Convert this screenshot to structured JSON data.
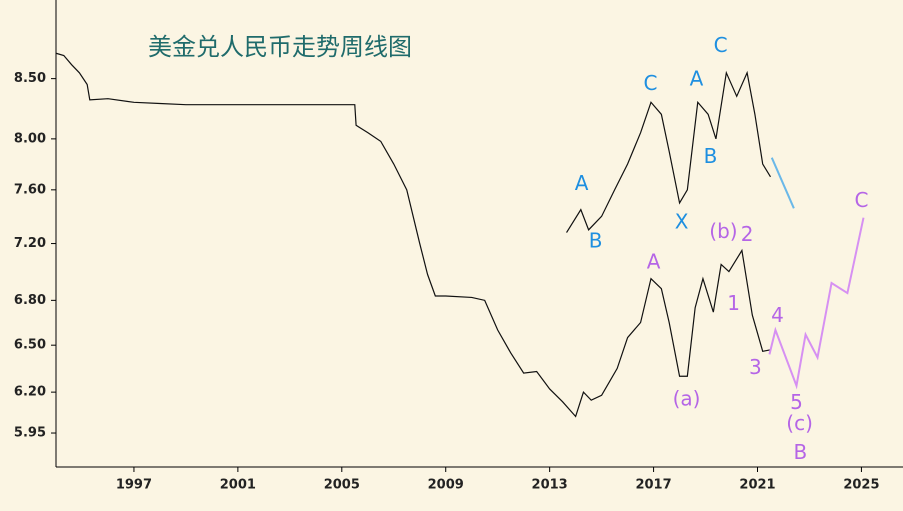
{
  "chart_data": {
    "type": "line",
    "title": "美金兑人民币走势周线图",
    "log_y": true,
    "xlim": [
      1994,
      2026.6
    ],
    "ylim": [
      5.75,
      9.2
    ],
    "xticks": [
      1997,
      2001,
      2005,
      2009,
      2013,
      2017,
      2021,
      2025
    ],
    "yticks": [
      {
        "value": 8.5,
        "label": "8.50"
      },
      {
        "value": 8.0,
        "label": "8.00"
      },
      {
        "value": 7.6,
        "label": "7.60"
      },
      {
        "value": 7.2,
        "label": "7.20"
      },
      {
        "value": 6.8,
        "label": "6.80"
      },
      {
        "value": 6.5,
        "label": "6.50"
      },
      {
        "value": 6.2,
        "label": "6.20"
      },
      {
        "value": 5.95,
        "label": "5.95"
      }
    ],
    "series": [
      {
        "color": "#111111",
        "x": [
          1994.0,
          1994.3,
          1994.6,
          1994.9,
          1995.2,
          1995.3,
          1996,
          1997,
          1998,
          1999,
          2000,
          2001,
          2002,
          2003,
          2004,
          2005.5,
          2005.55,
          2006,
          2006.5,
          2007,
          2007.5,
          2008,
          2008.3,
          2008.6,
          2009,
          2010,
          2010.5,
          2011,
          2011.5,
          2012,
          2012.5,
          2013,
          2013.5,
          2014,
          2014.3,
          2014.6,
          2015,
          2015.6,
          2016,
          2016.5,
          2016.9,
          2017.3,
          2017.6,
          2018.0,
          2018.3,
          2018.6,
          2018.9,
          2019.3,
          2019.6,
          2019.9,
          2020.4,
          2020.8,
          2021.2,
          2021.5
        ],
        "values": [
          8.72,
          8.7,
          8.62,
          8.55,
          8.45,
          8.32,
          8.33,
          8.3,
          8.29,
          8.28,
          8.28,
          8.28,
          8.28,
          8.28,
          8.28,
          8.28,
          8.11,
          8.05,
          7.98,
          7.8,
          7.6,
          7.2,
          6.98,
          6.83,
          6.83,
          6.82,
          6.8,
          6.6,
          6.45,
          6.32,
          6.33,
          6.22,
          6.14,
          6.05,
          6.2,
          6.15,
          6.18,
          6.35,
          6.55,
          6.65,
          6.95,
          6.88,
          6.65,
          6.3,
          6.3,
          6.75,
          6.95,
          6.72,
          7.05,
          7.0,
          7.15,
          6.7,
          6.46,
          6.47
        ]
      },
      {
        "color": "#111111",
        "x": [
          2013.65,
          2014.2,
          2014.5,
          2015,
          2015.5,
          2016,
          2016.5,
          2016.9,
          2017.3,
          2017.6,
          2018.0,
          2018.3,
          2018.7,
          2019.1,
          2019.4,
          2019.8,
          2020.2,
          2020.6,
          2020.9,
          2021.2,
          2021.5
        ],
        "values": [
          7.28,
          7.45,
          7.3,
          7.4,
          7.6,
          7.8,
          8.05,
          8.3,
          8.2,
          7.9,
          7.5,
          7.6,
          8.3,
          8.2,
          8.0,
          8.55,
          8.35,
          8.55,
          8.2,
          7.8,
          7.7
        ]
      },
      {
        "color": "#6ab8e8",
        "x": [
          2021.55,
          2022.4
        ],
        "values": [
          7.85,
          7.46
        ]
      },
      {
        "color": "#d690f2",
        "x": [
          2021.46,
          2021.69,
          2022.5,
          2022.85,
          2023.31,
          2023.85,
          2024.46,
          2025.08
        ],
        "values": [
          6.44,
          6.6,
          6.24,
          6.57,
          6.42,
          6.92,
          6.85,
          7.39
        ]
      }
    ],
    "annotations": [
      {
        "text": "A",
        "x": 2014.23,
        "y": 7.64,
        "color": "#1e8fe0"
      },
      {
        "text": "B",
        "x": 2014.77,
        "y": 7.21,
        "color": "#1e8fe0"
      },
      {
        "text": "C",
        "x": 2016.88,
        "y": 8.45,
        "color": "#1e8fe0"
      },
      {
        "text": "X",
        "x": 2018.08,
        "y": 7.35,
        "color": "#1e8fe0"
      },
      {
        "text": "A",
        "x": 2018.65,
        "y": 8.49,
        "color": "#1e8fe0"
      },
      {
        "text": "B",
        "x": 2019.19,
        "y": 7.85,
        "color": "#1e8fe0"
      },
      {
        "text": "C",
        "x": 2019.58,
        "y": 8.78,
        "color": "#1e8fe0"
      },
      {
        "text": "A",
        "x": 2017.0,
        "y": 7.06,
        "color": "#b565e6"
      },
      {
        "text": "(a)",
        "x": 2018.27,
        "y": 6.15,
        "color": "#b565e6"
      },
      {
        "text": "(b)",
        "x": 2019.69,
        "y": 7.28,
        "color": "#b565e6"
      },
      {
        "text": "2",
        "x": 2020.6,
        "y": 7.26,
        "color": "#b565e6"
      },
      {
        "text": "1",
        "x": 2020.08,
        "y": 6.77,
        "color": "#b565e6"
      },
      {
        "text": "4",
        "x": 2021.77,
        "y": 6.69,
        "color": "#b565e6"
      },
      {
        "text": "3",
        "x": 2020.92,
        "y": 6.35,
        "color": "#b565e6"
      },
      {
        "text": "5",
        "x": 2022.5,
        "y": 6.13,
        "color": "#b565e6"
      },
      {
        "text": "(c)",
        "x": 2022.62,
        "y": 6.0,
        "color": "#b565e6"
      },
      {
        "text": "B",
        "x": 2022.65,
        "y": 5.83,
        "color": "#b565e6"
      },
      {
        "text": "C",
        "x": 2025.0,
        "y": 7.51,
        "color": "#b565e6"
      }
    ]
  }
}
